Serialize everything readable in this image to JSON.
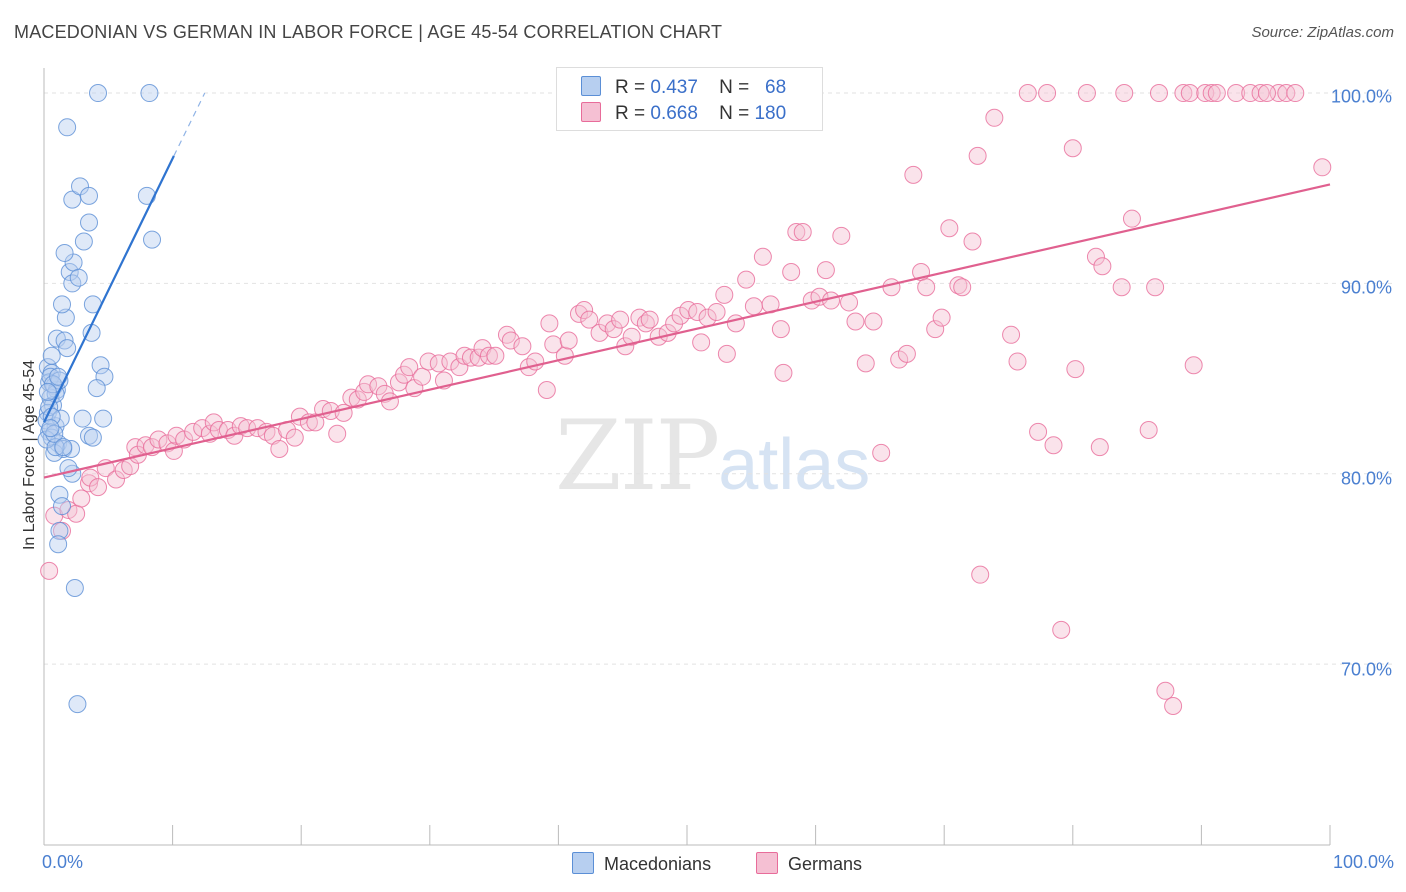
{
  "title": "MACEDONIAN VS GERMAN IN LABOR FORCE | AGE 45-54 CORRELATION CHART",
  "source": "Source: ZipAtlas.com",
  "watermark": {
    "zip": "ZIP",
    "atlas": "atlas"
  },
  "legend": {
    "r_label": "R =",
    "n_label": "N =",
    "macedonians": {
      "r": "0.437",
      "n": "68"
    },
    "germans": {
      "r": "0.668",
      "n": "180"
    }
  },
  "bottom_legend": {
    "macedonians": "Macedonians",
    "germans": "Germans"
  },
  "colors": {
    "macedonian": "#5b8fd6",
    "macedonian_fill": "#b7cff0",
    "german": "#e86c9a",
    "german_fill": "#f5c0d3",
    "axis_text": "#4a7fd0"
  },
  "chart_data": {
    "type": "scatter",
    "title": "MACEDONIAN VS GERMAN IN LABOR FORCE | AGE 45-54 CORRELATION CHART",
    "xlabel": "",
    "ylabel": "In Labor Force | Age 45-54",
    "xlim": [
      0,
      100
    ],
    "ylim": [
      60.5,
      101
    ],
    "x_tick_labels": [
      "0.0%",
      "100.0%"
    ],
    "y_ticks": [
      70,
      80,
      90,
      100
    ],
    "y_tick_labels": [
      "70.0%",
      "80.0%",
      "90.0%",
      "100.0%"
    ],
    "grid": true,
    "series": [
      {
        "name": "Macedonians",
        "r": 0.437,
        "n": 68,
        "trend": {
          "x0": 0,
          "y0": 82.7,
          "x1": 10.1,
          "y1": 96.7,
          "dash_to_x": 12.5,
          "dash_to_y": 100
        },
        "points": [
          [
            0.3,
            85.6
          ],
          [
            0.6,
            85.3
          ],
          [
            0.4,
            84.8
          ],
          [
            0.8,
            84.6
          ],
          [
            1.0,
            84.4
          ],
          [
            0.5,
            84.0
          ],
          [
            0.7,
            83.6
          ],
          [
            0.3,
            83.2
          ],
          [
            0.2,
            82.8
          ],
          [
            0.9,
            82.5
          ],
          [
            0.4,
            82.2
          ],
          [
            0.6,
            81.9
          ],
          [
            1.1,
            81.6
          ],
          [
            1.5,
            81.3
          ],
          [
            0.8,
            81.1
          ],
          [
            2.1,
            81.3
          ],
          [
            0.5,
            85.1
          ],
          [
            0.9,
            84.2
          ],
          [
            1.2,
            84.9
          ],
          [
            0.6,
            86.2
          ],
          [
            1.0,
            87.1
          ],
          [
            1.6,
            87.0
          ],
          [
            1.8,
            86.6
          ],
          [
            1.7,
            88.2
          ],
          [
            1.4,
            88.9
          ],
          [
            2.0,
            90.6
          ],
          [
            2.2,
            90.0
          ],
          [
            2.3,
            91.1
          ],
          [
            1.6,
            91.6
          ],
          [
            2.7,
            90.3
          ],
          [
            3.1,
            92.2
          ],
          [
            2.2,
            94.4
          ],
          [
            2.8,
            95.1
          ],
          [
            3.5,
            94.6
          ],
          [
            3.5,
            93.2
          ],
          [
            1.8,
            98.2
          ],
          [
            4.2,
            100.0
          ],
          [
            8.2,
            100.0
          ],
          [
            8.0,
            94.6
          ],
          [
            8.4,
            92.3
          ],
          [
            3.8,
            88.9
          ],
          [
            3.7,
            87.4
          ],
          [
            4.4,
            85.7
          ],
          [
            4.7,
            85.1
          ],
          [
            4.1,
            84.5
          ],
          [
            3.0,
            82.9
          ],
          [
            4.6,
            82.9
          ],
          [
            3.5,
            82.0
          ],
          [
            3.8,
            81.9
          ],
          [
            1.2,
            78.9
          ],
          [
            2.2,
            80.0
          ],
          [
            1.9,
            80.3
          ],
          [
            1.4,
            78.3
          ],
          [
            1.2,
            77.0
          ],
          [
            1.1,
            76.3
          ],
          [
            2.4,
            74.0
          ],
          [
            2.6,
            67.9
          ],
          [
            0.2,
            81.8
          ],
          [
            0.4,
            83.5
          ],
          [
            0.7,
            84.7
          ],
          [
            1.3,
            82.9
          ],
          [
            0.9,
            81.4
          ],
          [
            1.1,
            85.1
          ],
          [
            0.6,
            83.0
          ],
          [
            0.8,
            82.1
          ],
          [
            0.3,
            84.3
          ],
          [
            1.5,
            81.4
          ],
          [
            0.5,
            82.4
          ]
        ]
      },
      {
        "name": "Germans",
        "r": 0.668,
        "n": 180,
        "trend": {
          "x0": 0,
          "y0": 79.8,
          "x1": 100,
          "y1": 95.2
        },
        "points": [
          [
            0.4,
            74.9
          ],
          [
            0.8,
            77.8
          ],
          [
            1.4,
            77.0
          ],
          [
            1.9,
            78.1
          ],
          [
            2.5,
            77.9
          ],
          [
            2.9,
            78.7
          ],
          [
            3.5,
            79.5
          ],
          [
            3.6,
            79.8
          ],
          [
            4.2,
            79.3
          ],
          [
            4.8,
            80.3
          ],
          [
            5.6,
            79.7
          ],
          [
            6.2,
            80.2
          ],
          [
            6.7,
            80.4
          ],
          [
            7.1,
            81.4
          ],
          [
            7.3,
            81.0
          ],
          [
            7.9,
            81.5
          ],
          [
            8.4,
            81.4
          ],
          [
            8.9,
            81.8
          ],
          [
            9.6,
            81.6
          ],
          [
            10.1,
            81.2
          ],
          [
            10.3,
            82.0
          ],
          [
            10.9,
            81.8
          ],
          [
            11.6,
            82.2
          ],
          [
            12.3,
            82.4
          ],
          [
            12.9,
            82.1
          ],
          [
            13.2,
            82.7
          ],
          [
            13.6,
            82.3
          ],
          [
            14.3,
            82.3
          ],
          [
            14.8,
            82.0
          ],
          [
            15.3,
            82.5
          ],
          [
            15.8,
            82.4
          ],
          [
            16.6,
            82.4
          ],
          [
            17.3,
            82.2
          ],
          [
            17.8,
            82.0
          ],
          [
            18.3,
            81.3
          ],
          [
            18.9,
            82.3
          ],
          [
            19.5,
            81.9
          ],
          [
            19.9,
            83.0
          ],
          [
            20.6,
            82.7
          ],
          [
            21.1,
            82.7
          ],
          [
            21.7,
            83.4
          ],
          [
            22.3,
            83.3
          ],
          [
            22.8,
            82.1
          ],
          [
            23.3,
            83.2
          ],
          [
            23.9,
            84.0
          ],
          [
            24.4,
            83.9
          ],
          [
            24.9,
            84.3
          ],
          [
            25.2,
            84.7
          ],
          [
            26.0,
            84.6
          ],
          [
            26.5,
            84.2
          ],
          [
            26.9,
            83.8
          ],
          [
            27.6,
            84.8
          ],
          [
            28.0,
            85.2
          ],
          [
            28.4,
            85.6
          ],
          [
            28.8,
            84.5
          ],
          [
            29.4,
            85.1
          ],
          [
            29.9,
            85.9
          ],
          [
            30.7,
            85.8
          ],
          [
            31.1,
            84.9
          ],
          [
            31.6,
            85.9
          ],
          [
            32.3,
            85.6
          ],
          [
            32.7,
            86.2
          ],
          [
            33.2,
            86.1
          ],
          [
            33.8,
            86.1
          ],
          [
            34.1,
            86.6
          ],
          [
            34.6,
            86.2
          ],
          [
            35.1,
            86.2
          ],
          [
            36.0,
            87.3
          ],
          [
            36.3,
            87.0
          ],
          [
            37.2,
            86.7
          ],
          [
            37.7,
            85.6
          ],
          [
            38.2,
            85.9
          ],
          [
            39.1,
            84.4
          ],
          [
            39.3,
            87.9
          ],
          [
            39.6,
            86.8
          ],
          [
            40.5,
            86.2
          ],
          [
            40.8,
            87.0
          ],
          [
            41.6,
            88.4
          ],
          [
            42.0,
            88.6
          ],
          [
            42.4,
            88.1
          ],
          [
            43.2,
            87.4
          ],
          [
            43.8,
            87.9
          ],
          [
            44.3,
            87.6
          ],
          [
            44.8,
            88.1
          ],
          [
            45.2,
            86.7
          ],
          [
            45.7,
            87.2
          ],
          [
            46.3,
            88.2
          ],
          [
            46.8,
            87.9
          ],
          [
            47.1,
            88.1
          ],
          [
            47.8,
            87.2
          ],
          [
            48.5,
            87.4
          ],
          [
            49.0,
            87.9
          ],
          [
            49.5,
            88.3
          ],
          [
            50.1,
            88.6
          ],
          [
            50.8,
            88.5
          ],
          [
            51.1,
            86.9
          ],
          [
            51.6,
            88.2
          ],
          [
            52.3,
            88.5
          ],
          [
            52.9,
            89.4
          ],
          [
            53.1,
            86.3
          ],
          [
            53.8,
            87.9
          ],
          [
            54.6,
            90.2
          ],
          [
            55.2,
            88.8
          ],
          [
            55.9,
            91.4
          ],
          [
            56.5,
            88.9
          ],
          [
            57.3,
            87.6
          ],
          [
            57.5,
            85.3
          ],
          [
            58.1,
            90.6
          ],
          [
            58.5,
            92.7
          ],
          [
            59.0,
            92.7
          ],
          [
            59.7,
            89.1
          ],
          [
            60.3,
            89.3
          ],
          [
            60.8,
            90.7
          ],
          [
            61.2,
            89.1
          ],
          [
            62.0,
            92.5
          ],
          [
            62.6,
            89.0
          ],
          [
            63.1,
            88.0
          ],
          [
            63.9,
            85.8
          ],
          [
            64.5,
            88.0
          ],
          [
            65.1,
            81.1
          ],
          [
            65.9,
            89.8
          ],
          [
            66.5,
            86.0
          ],
          [
            67.1,
            86.3
          ],
          [
            67.6,
            95.7
          ],
          [
            68.2,
            90.6
          ],
          [
            68.6,
            89.8
          ],
          [
            69.3,
            87.6
          ],
          [
            69.8,
            88.2
          ],
          [
            70.4,
            92.9
          ],
          [
            71.1,
            89.9
          ],
          [
            71.4,
            89.8
          ],
          [
            72.2,
            92.2
          ],
          [
            72.6,
            96.7
          ],
          [
            72.8,
            74.7
          ],
          [
            73.9,
            98.7
          ],
          [
            75.2,
            87.3
          ],
          [
            75.7,
            85.9
          ],
          [
            76.5,
            100.0
          ],
          [
            77.3,
            82.2
          ],
          [
            78.0,
            100.0
          ],
          [
            78.5,
            81.5
          ],
          [
            79.1,
            71.8
          ],
          [
            80.0,
            97.1
          ],
          [
            80.2,
            85.5
          ],
          [
            81.1,
            100.0
          ],
          [
            81.8,
            91.4
          ],
          [
            82.1,
            81.4
          ],
          [
            82.3,
            90.9
          ],
          [
            83.8,
            89.8
          ],
          [
            84.0,
            100.0
          ],
          [
            84.6,
            93.4
          ],
          [
            85.9,
            82.3
          ],
          [
            86.4,
            89.8
          ],
          [
            86.7,
            100.0
          ],
          [
            87.2,
            68.6
          ],
          [
            87.8,
            67.8
          ],
          [
            88.6,
            100.0
          ],
          [
            89.1,
            100.0
          ],
          [
            89.4,
            85.7
          ],
          [
            90.3,
            100.0
          ],
          [
            90.8,
            100.0
          ],
          [
            91.2,
            100.0
          ],
          [
            92.7,
            100.0
          ],
          [
            93.8,
            100.0
          ],
          [
            94.6,
            100.0
          ],
          [
            96.0,
            100.0
          ],
          [
            96.6,
            100.0
          ],
          [
            97.3,
            100.0
          ],
          [
            99.4,
            96.1
          ],
          [
            95.1,
            100.0
          ]
        ]
      }
    ]
  }
}
